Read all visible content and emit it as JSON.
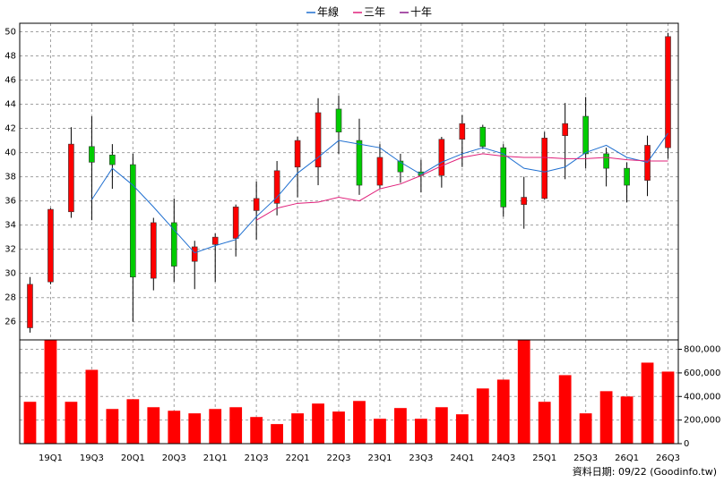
{
  "chart_data": [
    {
      "type": "candlestick",
      "categories": [
        null,
        "19Q1",
        null,
        "19Q3",
        null,
        "20Q1",
        null,
        "20Q3",
        null,
        "21Q1",
        null,
        "21Q3",
        null,
        "22Q1",
        null,
        "22Q3",
        null,
        "23Q1",
        null,
        "23Q3",
        null,
        "24Q1",
        null,
        "24Q3",
        null,
        "25Q1",
        null,
        "25Q3",
        null,
        "26Q1",
        null,
        "26Q3"
      ],
      "open": [
        25.5,
        29.3,
        35.1,
        40.5,
        39.8,
        39.0,
        29.6,
        34.2,
        31.0,
        32.4,
        32.9,
        35.2,
        35.8,
        38.8,
        38.8,
        43.6,
        41.0,
        37.3,
        39.3,
        38.4,
        38.1,
        41.1,
        42.1,
        40.4,
        35.7,
        36.2,
        41.4,
        43.0,
        39.9,
        38.7,
        37.7,
        40.4
      ],
      "high": [
        29.7,
        35.4,
        42.1,
        43.0,
        40.7,
        39.9,
        34.6,
        36.2,
        32.7,
        33.3,
        35.7,
        37.6,
        39.3,
        41.3,
        44.5,
        44.7,
        42.8,
        40.7,
        39.9,
        39.4,
        41.3,
        43.1,
        42.3,
        40.7,
        38.0,
        41.7,
        44.1,
        44.6,
        40.4,
        39.2,
        41.4,
        49.9
      ],
      "low": [
        25.1,
        29.1,
        34.6,
        34.4,
        37.0,
        26.0,
        28.6,
        29.3,
        28.7,
        29.3,
        31.4,
        32.8,
        34.8,
        36.3,
        37.3,
        39.9,
        36.5,
        37.0,
        37.5,
        36.7,
        37.1,
        38.8,
        40.3,
        34.7,
        33.7,
        36.1,
        37.8,
        38.7,
        37.2,
        35.9,
        36.4,
        39.5
      ],
      "close": [
        29.1,
        35.3,
        40.7,
        39.2,
        39.0,
        29.7,
        34.2,
        30.6,
        32.2,
        33.0,
        35.5,
        36.2,
        38.5,
        41.0,
        43.3,
        41.7,
        37.3,
        39.6,
        38.4,
        38.1,
        41.1,
        42.4,
        40.5,
        35.5,
        36.3,
        41.2,
        42.4,
        39.9,
        38.7,
        37.3,
        40.6,
        49.6
      ],
      "up_color": "#ff0000",
      "down_color": "#00cc00",
      "series": [
        {
          "name": "年線",
          "color": "#1f6fd0",
          "values": [
            null,
            null,
            null,
            36.1,
            38.7,
            37.3,
            35.5,
            33.6,
            31.7,
            32.3,
            32.8,
            34.7,
            36.3,
            38.3,
            39.6,
            41.0,
            40.7,
            40.4,
            39.2,
            38.2,
            39.2,
            39.9,
            40.4,
            39.9,
            38.7,
            38.4,
            38.8,
            40.0,
            40.6,
            39.6,
            39.2,
            41.6
          ]
        },
        {
          "name": "三年",
          "color": "#e0207a",
          "values": [
            null,
            null,
            null,
            null,
            null,
            null,
            null,
            null,
            null,
            null,
            null,
            34.4,
            35.4,
            35.8,
            35.9,
            36.3,
            36.0,
            37.0,
            37.4,
            38.1,
            38.9,
            39.6,
            39.9,
            39.7,
            39.6,
            39.6,
            39.5,
            39.5,
            39.6,
            39.4,
            39.3,
            39.3
          ]
        },
        {
          "name": "十年",
          "color": "#8b1a8b",
          "values": [
            null,
            null,
            null,
            null,
            null,
            null,
            null,
            null,
            null,
            null,
            null,
            null,
            null,
            null,
            null,
            null,
            null,
            null,
            null,
            null,
            null,
            null,
            null,
            null,
            null,
            null,
            null,
            null,
            null,
            null,
            null,
            null
          ]
        }
      ],
      "ylim": [
        24.5,
        50.7
      ],
      "yticks": [
        26,
        28,
        30,
        32,
        34,
        36,
        38,
        40,
        42,
        44,
        46,
        48,
        50
      ],
      "grid": true,
      "legend": "top"
    },
    {
      "type": "bar",
      "color": "#ff0000",
      "values": [
        355000,
        883000,
        355000,
        626000,
        294000,
        377000,
        309000,
        279000,
        257000,
        294000,
        309000,
        226000,
        166000,
        257000,
        340000,
        272000,
        362000,
        211000,
        302000,
        211000,
        309000,
        249000,
        468000,
        543000,
        883000,
        355000,
        581000,
        257000,
        445000,
        400000,
        687000,
        611000
      ],
      "ylim": [
        0,
        880000
      ],
      "yticks": [
        0,
        {
          "value": 200000,
          "label": "200,000"
        },
        {
          "value": 400000,
          "label": "400,000"
        },
        {
          "value": 600000,
          "label": "600,000"
        },
        {
          "value": 800000,
          "label": "800,000"
        }
      ],
      "grid": true
    }
  ],
  "footer": "資料日期: 09/22 (Goodinfo.tw)"
}
